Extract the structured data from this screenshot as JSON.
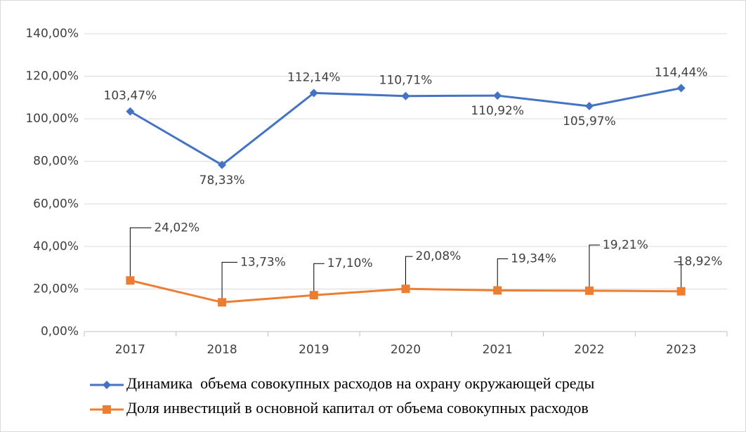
{
  "chart_data": {
    "type": "line",
    "categories": [
      "2017",
      "2018",
      "2019",
      "2020",
      "2021",
      "2022",
      "2023"
    ],
    "series": [
      {
        "name": "Динамика  объема совокупных расходов на охрану окружающей среды",
        "color": "#4472c4",
        "values": [
          103.47,
          78.33,
          112.14,
          110.71,
          110.92,
          105.97,
          114.44
        ],
        "value_labels": [
          "103,47%",
          "78,33%",
          "112,14%",
          "110,71%",
          "110,92%",
          "105,97%",
          "114,44%"
        ]
      },
      {
        "name": "Доля инвестиций в основной капитал от объема совокупных расходов",
        "color": "#ed7d31",
        "values": [
          24.02,
          13.73,
          17.1,
          20.08,
          19.34,
          19.21,
          18.92
        ],
        "value_labels": [
          "24,02%",
          "13,73%",
          "17,10%",
          "20,08%",
          "19,34%",
          "19,21%",
          "18,92%"
        ]
      }
    ],
    "ylim": [
      0,
      140
    ],
    "yticks": [
      {
        "value": 0,
        "label": "0,00%"
      },
      {
        "value": 20,
        "label": "20,00%"
      },
      {
        "value": 40,
        "label": "40,00%"
      },
      {
        "value": 60,
        "label": "60,00%"
      },
      {
        "value": 80,
        "label": "80,00%"
      },
      {
        "value": 100,
        "label": "100,00%"
      },
      {
        "value": 120,
        "label": "120,00%"
      },
      {
        "value": 140,
        "label": "140,00%"
      }
    ],
    "grid": true
  }
}
